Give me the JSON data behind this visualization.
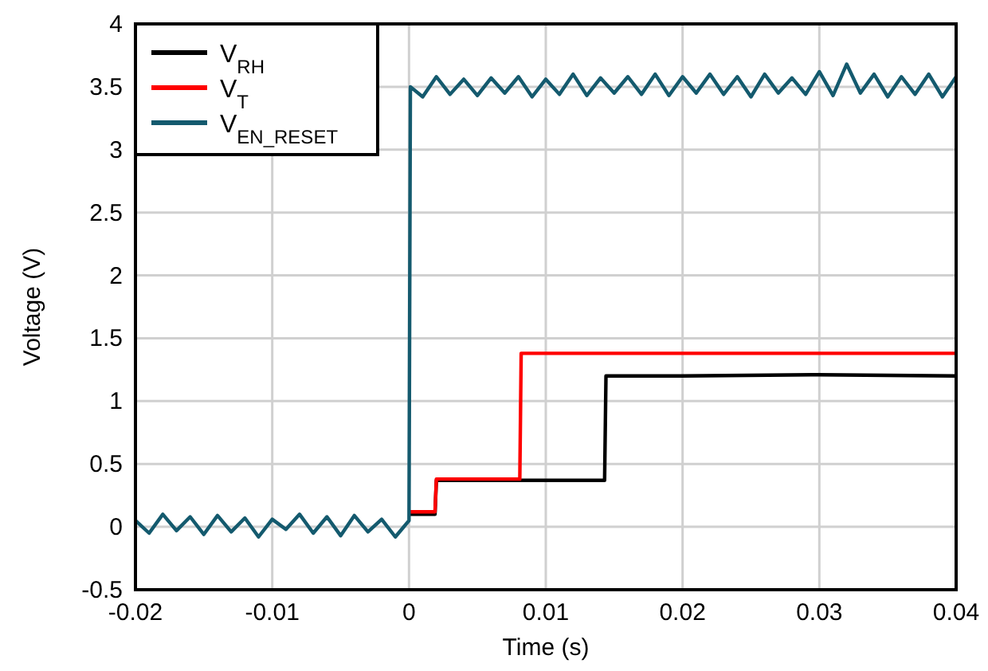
{
  "chart_data": {
    "type": "line",
    "xlabel": "Time (s)",
    "ylabel": "Voltage (V)",
    "xlim": [
      -0.02,
      0.04
    ],
    "xticks": [
      -0.02,
      -0.01,
      0,
      0.01,
      0.02,
      0.03,
      0.04
    ],
    "ylim": [
      -0.5,
      4
    ],
    "yticks": [
      -0.5,
      0,
      0.5,
      1,
      1.5,
      2,
      2.5,
      3,
      3.5,
      4
    ],
    "grid": true,
    "legend": "top left",
    "marker": "none",
    "line_style": "solid",
    "series": [
      {
        "name": "V$_{RH}$",
        "color": "#000000",
        "x": [
          0,
          0.0019,
          0.002,
          0.005,
          0.0143,
          0.0144,
          0.02,
          0.03,
          0.04
        ],
        "values": [
          0.1,
          0.1,
          0.37,
          0.37,
          0.37,
          1.2,
          1.2,
          1.21,
          1.2
        ]
      },
      {
        "name": "V$_{T}$",
        "color": "#ff0000",
        "x": [
          0,
          0.0019,
          0.002,
          0.005,
          0.0081,
          0.0082,
          0.02,
          0.03,
          0.04
        ],
        "values": [
          0.12,
          0.12,
          0.38,
          0.38,
          0.38,
          1.38,
          1.38,
          1.38,
          1.38
        ]
      },
      {
        "name": "V$_{EN_RESET}$",
        "color": "#145a6e",
        "x": [
          -0.02,
          -0.019,
          -0.018,
          -0.017,
          -0.016,
          -0.015,
          -0.014,
          -0.013,
          -0.012,
          -0.011,
          -0.01,
          -0.009,
          -0.008,
          -0.007,
          -0.006,
          -0.005,
          -0.004,
          -0.003,
          -0.002,
          -0.001,
          0,
          0.0001,
          0.001,
          0.002,
          0.003,
          0.004,
          0.005,
          0.006,
          0.007,
          0.008,
          0.009,
          0.01,
          0.011,
          0.012,
          0.013,
          0.014,
          0.015,
          0.016,
          0.017,
          0.018,
          0.019,
          0.02,
          0.021,
          0.022,
          0.023,
          0.024,
          0.025,
          0.026,
          0.027,
          0.028,
          0.029,
          0.03,
          0.031,
          0.032,
          0.033,
          0.034,
          0.035,
          0.036,
          0.037,
          0.038,
          0.039,
          0.04
        ],
        "values": [
          0.05,
          -0.05,
          0.1,
          -0.03,
          0.08,
          -0.06,
          0.09,
          -0.04,
          0.07,
          -0.08,
          0.06,
          -0.02,
          0.1,
          -0.05,
          0.08,
          -0.07,
          0.09,
          -0.04,
          0.06,
          -0.08,
          0.05,
          3.5,
          3.42,
          3.58,
          3.44,
          3.56,
          3.43,
          3.57,
          3.45,
          3.58,
          3.42,
          3.56,
          3.44,
          3.6,
          3.43,
          3.57,
          3.45,
          3.58,
          3.44,
          3.6,
          3.43,
          3.58,
          3.45,
          3.6,
          3.44,
          3.58,
          3.42,
          3.6,
          3.45,
          3.57,
          3.44,
          3.62,
          3.43,
          3.68,
          3.45,
          3.6,
          3.42,
          3.58,
          3.44,
          3.6,
          3.42,
          3.58
        ]
      }
    ]
  }
}
